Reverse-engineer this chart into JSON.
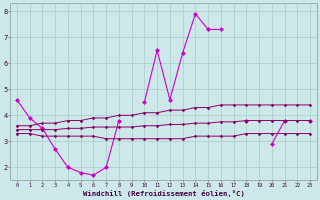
{
  "xlabel": "Windchill (Refroidissement éolien,°C)",
  "background_color": "#cce8e8",
  "grid_color": "#aacccc",
  "x_values": [
    0,
    1,
    2,
    3,
    4,
    5,
    6,
    7,
    8,
    9,
    10,
    11,
    12,
    13,
    14,
    15,
    16,
    17,
    18,
    19,
    20,
    21,
    22,
    23
  ],
  "line1_y": [
    4.6,
    3.9,
    3.5,
    2.7,
    2.0,
    1.8,
    1.7,
    2.0,
    3.8,
    null,
    4.5,
    6.5,
    4.6,
    6.4,
    7.9,
    7.3,
    7.3,
    null,
    3.8,
    null,
    2.9,
    3.8,
    null,
    3.8
  ],
  "line2_y": [
    3.6,
    3.6,
    3.7,
    3.7,
    3.8,
    3.8,
    3.9,
    3.9,
    4.0,
    4.0,
    4.1,
    4.1,
    4.2,
    4.2,
    4.3,
    4.3,
    4.4,
    4.4,
    4.4,
    4.4,
    4.4,
    4.4,
    4.4,
    4.4
  ],
  "line3_y": [
    3.3,
    3.3,
    3.2,
    3.2,
    3.2,
    3.2,
    3.2,
    3.1,
    3.1,
    3.1,
    3.1,
    3.1,
    3.1,
    3.1,
    3.2,
    3.2,
    3.2,
    3.2,
    3.3,
    3.3,
    3.3,
    3.3,
    3.3,
    3.3
  ],
  "line4_y": [
    3.45,
    3.45,
    3.45,
    3.45,
    3.5,
    3.5,
    3.55,
    3.55,
    3.55,
    3.55,
    3.6,
    3.6,
    3.65,
    3.65,
    3.7,
    3.7,
    3.75,
    3.75,
    3.8,
    3.8,
    3.8,
    3.8,
    3.8,
    3.8
  ],
  "line_color1": "#cc00cc",
  "line_color234": "#880066",
  "ylim": [
    1.5,
    8.3
  ],
  "yticks": [
    2,
    3,
    4,
    5,
    6,
    7,
    8
  ],
  "xlim": [
    -0.5,
    23.5
  ]
}
